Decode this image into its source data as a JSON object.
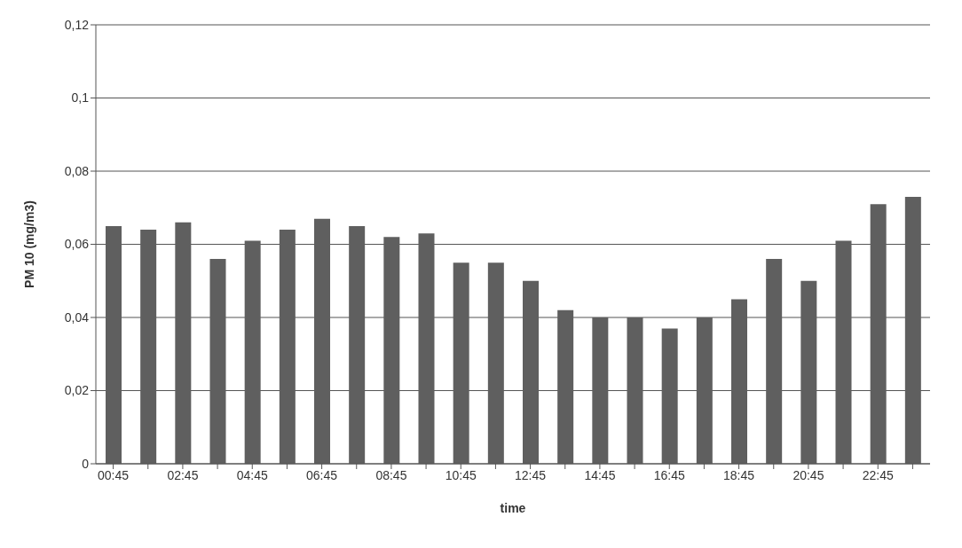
{
  "chart_data": {
    "type": "bar",
    "xlabel": "time",
    "ylabel": "PM 10 (mg/m3)",
    "categories": [
      "00:45",
      null,
      "02:45",
      null,
      "04:45",
      null,
      "06:45",
      null,
      "08:45",
      null,
      "10:45",
      null,
      "12:45",
      null,
      "14:45",
      null,
      "16:45",
      null,
      "18:45",
      null,
      "20:45",
      null,
      "22:45",
      null
    ],
    "values": [
      0.065,
      0.064,
      0.066,
      0.056,
      0.061,
      0.064,
      0.067,
      0.065,
      0.062,
      0.063,
      0.055,
      0.055,
      0.05,
      0.042,
      0.04,
      0.04,
      0.037,
      0.04,
      0.045,
      0.056,
      0.05,
      0.061,
      0.071,
      0.073
    ],
    "color": "#5f5f5f",
    "ylim": [
      0,
      0.12
    ],
    "yticks": [
      {
        "value": 0,
        "label": "0"
      },
      {
        "value": 0.02,
        "label": "0,02"
      },
      {
        "value": 0.04,
        "label": "0,04"
      },
      {
        "value": 0.06,
        "label": "0,06"
      },
      {
        "value": 0.08,
        "label": "0,08"
      },
      {
        "value": 0.1,
        "label": "0,1"
      },
      {
        "value": 0.12,
        "label": "0,12"
      }
    ],
    "grid": "y"
  }
}
